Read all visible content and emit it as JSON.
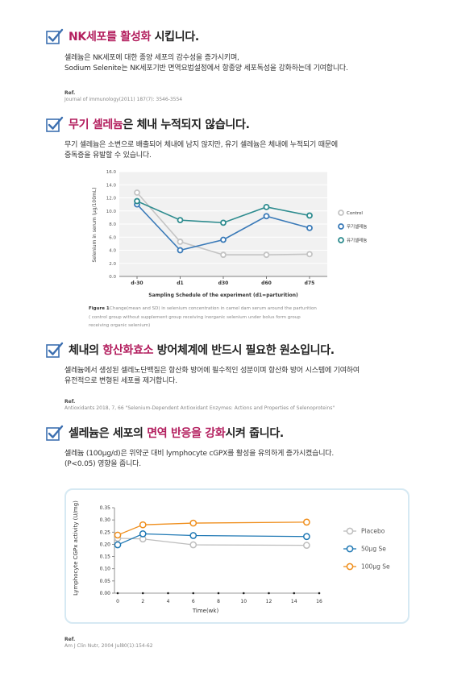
{
  "sections": [
    {
      "heading_highlight": "NK세포를 활성화",
      "heading_rest": " 시킵니다.",
      "body_lines": [
        "셀레늄은 NK세포에 대한 종양 세포의 감수성을 증가시키며,",
        "Sodium Selenite는 NK세포기반 면역요법설정에서 항종양 세포독성을 강화하는데 기여합니다."
      ],
      "ref_label": "Ref.",
      "ref_text": "Journal of immunology(2011) 187(7): 3546-3554"
    },
    {
      "heading_highlight": "무기 셀레늄",
      "heading_rest": "은 체내 누적되지 않습니다.",
      "body_lines": [
        "무기 셀레늄은 소변으로 배출되어 체내에 남지 않지만, 유기 셀레늄은 체내에 누적되기 때문에",
        "중독증을 유발할 수 있습니다."
      ]
    },
    {
      "heading_prefix": "체내의 ",
      "heading_highlight": "항산화효소",
      "heading_rest": " 방어체계에 반드시 필요한 원소입니다.",
      "body_lines": [
        "셀레늄에서 생성된 셀레노단백질은 항산화 방어에 필수적인 성분이며 항산화 방어 시스템에 기여하여",
        "유전적으로 변형된 세포를 제거합니다."
      ],
      "ref_label": "Ref.",
      "ref_text": "Antioxidants 2018, 7, 66 \"Selenium-Dependent Antioxidant Enzymes: Actions and Properties of Selenoproteins\""
    },
    {
      "heading_prefix": "셀레늄은 세포의 ",
      "heading_highlight": "면역 반응을 강화",
      "heading_rest": "시켜 줍니다.",
      "body_lines": [
        "셀레늄 (100μg/d)은 위약군 대비 lymphocyte cGPX를 활성을 유의하게 증가시켰습니다.",
        "(P<0.05) 영향을 줍니다."
      ],
      "ref_label": "Ref.",
      "ref_text": "Am J Clin Nutr, 2004 Jul80(1):154-62"
    }
  ],
  "chart_data": [
    {
      "type": "line",
      "categories": [
        "d-30",
        "d1",
        "d30",
        "d60",
        "d75"
      ],
      "xlabel": "Sampling Schedule of the experiment (d1=parturition)",
      "ylabel": "Selenium in serum (μg/100mL)",
      "ylim": [
        0,
        16
      ],
      "yticks": [
        "0.0",
        "2.0",
        "4.0",
        "6.0",
        "8.0",
        "10.0",
        "12.0",
        "14.0",
        "16.0"
      ],
      "grid": true,
      "legend_position": "right",
      "series": [
        {
          "name": "Control",
          "color": "#c4c4c4",
          "values": [
            12.8,
            5.3,
            3.3,
            3.3,
            3.4
          ]
        },
        {
          "name": "무기셀레늄",
          "color": "#3a7ab8",
          "values": [
            11.0,
            4.0,
            5.6,
            9.2,
            7.4
          ]
        },
        {
          "name": "유기셀레늄",
          "color": "#2e8c8f",
          "values": [
            11.5,
            8.6,
            8.2,
            10.6,
            9.3
          ]
        }
      ],
      "caption_label": "Figure 1",
      "caption_lines": [
        "Change(mean and SD) in selenium concentration in camel dam serum around the parturition",
        "( control group without supplement   group receiving inorganic selenium under bolus form   group",
        "receiving organic selenium)"
      ]
    },
    {
      "type": "line",
      "x": [
        0,
        2,
        6,
        15
      ],
      "xticks": [
        "0",
        "2",
        "4",
        "6",
        "8",
        "10",
        "12",
        "14",
        "16"
      ],
      "xlim": [
        0,
        16
      ],
      "xlabel": "Time(wk)",
      "ylabel": "Lymphocyte CGPx activity (U/mg)",
      "ylim": [
        0,
        0.35
      ],
      "yticks": [
        "0.00",
        "0.05",
        "0.10",
        "0.15",
        "0.20",
        "0.25",
        "0.30",
        "0.35"
      ],
      "grid": false,
      "legend_position": "right",
      "series": [
        {
          "name": "Placebo",
          "color": "#bdbdbd",
          "values": [
            0.225,
            0.222,
            0.198,
            0.196
          ]
        },
        {
          "name": "50μg Se",
          "color": "#1f78b4",
          "values": [
            0.198,
            0.243,
            0.236,
            0.232
          ]
        },
        {
          "name": "100μg Se",
          "color": "#ef8e1c",
          "values": [
            0.238,
            0.28,
            0.287,
            0.291
          ]
        }
      ]
    }
  ]
}
